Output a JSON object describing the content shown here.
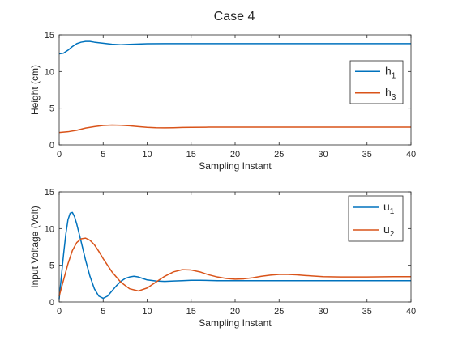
{
  "figure": {
    "title": "Case 4"
  },
  "chart_data": [
    {
      "type": "line",
      "title": "Case 4",
      "xlabel": "Sampling Instant",
      "ylabel": "Height (cm)",
      "xlim": [
        0,
        40
      ],
      "ylim": [
        0,
        15
      ],
      "xticks": [
        0,
        5,
        10,
        15,
        20,
        25,
        30,
        35,
        40
      ],
      "yticks": [
        0,
        5,
        10,
        15
      ],
      "grid": false,
      "legend_position": "right",
      "series": [
        {
          "name": "h",
          "subscript": "1",
          "color": "#0072bd",
          "x": [
            0,
            0.5,
            1,
            1.5,
            2,
            2.5,
            3,
            3.5,
            4,
            5,
            6,
            7,
            8,
            9,
            10,
            12,
            15,
            20,
            25,
            30,
            35,
            40
          ],
          "y": [
            12.4,
            12.5,
            12.9,
            13.4,
            13.8,
            14.0,
            14.1,
            14.1,
            14.0,
            13.85,
            13.72,
            13.65,
            13.7,
            13.75,
            13.78,
            13.8,
            13.8,
            13.8,
            13.8,
            13.8,
            13.8,
            13.8
          ]
        },
        {
          "name": "h",
          "subscript": "3",
          "color": "#d95319",
          "x": [
            0,
            1,
            2,
            3,
            4,
            5,
            6,
            7,
            8,
            9,
            10,
            11,
            12,
            13,
            14,
            15,
            17,
            20,
            25,
            30,
            35,
            40
          ],
          "y": [
            1.7,
            1.8,
            2.0,
            2.3,
            2.5,
            2.65,
            2.7,
            2.68,
            2.6,
            2.5,
            2.4,
            2.35,
            2.33,
            2.35,
            2.38,
            2.4,
            2.42,
            2.42,
            2.43,
            2.43,
            2.43,
            2.43
          ]
        }
      ]
    },
    {
      "type": "line",
      "xlabel": "Sampling Instant",
      "ylabel": "Input Voltage (Volt)",
      "xlim": [
        0,
        40
      ],
      "ylim": [
        0,
        15
      ],
      "xticks": [
        0,
        5,
        10,
        15,
        20,
        25,
        30,
        35,
        40
      ],
      "yticks": [
        0,
        5,
        10,
        15
      ],
      "grid": false,
      "legend_position": "top-right",
      "series": [
        {
          "name": "u",
          "subscript": "1",
          "color": "#0072bd",
          "x": [
            0,
            0.25,
            0.5,
            0.75,
            1,
            1.25,
            1.5,
            1.75,
            2,
            2.5,
            3,
            3.5,
            4,
            4.5,
            5,
            5.5,
            6,
            6.5,
            7,
            7.5,
            8,
            8.5,
            9,
            9.5,
            10,
            11,
            12,
            13,
            14,
            15,
            16,
            18,
            20,
            25,
            30,
            35,
            40
          ],
          "y": [
            0.4,
            3.5,
            6.5,
            9.2,
            11.2,
            12.1,
            12.2,
            11.6,
            10.6,
            8.2,
            5.7,
            3.5,
            1.8,
            0.8,
            0.5,
            0.8,
            1.5,
            2.2,
            2.8,
            3.2,
            3.4,
            3.5,
            3.4,
            3.2,
            3.0,
            2.85,
            2.8,
            2.85,
            2.9,
            2.95,
            2.95,
            2.9,
            2.9,
            2.9,
            2.9,
            2.9,
            2.9
          ]
        },
        {
          "name": "u",
          "subscript": "2",
          "color": "#d95319",
          "x": [
            0,
            0.5,
            1,
            1.5,
            2,
            2.5,
            3,
            3.5,
            4,
            4.5,
            5,
            5.5,
            6,
            7,
            8,
            9,
            10,
            11,
            12,
            13,
            14,
            15,
            16,
            17,
            18,
            19,
            20,
            21,
            22,
            23,
            24,
            25,
            26,
            27,
            28,
            30,
            32,
            35,
            38,
            40
          ],
          "y": [
            0.8,
            3.0,
            5.2,
            7.0,
            8.1,
            8.6,
            8.7,
            8.4,
            7.8,
            6.9,
            5.9,
            5.0,
            4.1,
            2.7,
            1.8,
            1.5,
            1.9,
            2.7,
            3.5,
            4.1,
            4.4,
            4.35,
            4.1,
            3.7,
            3.4,
            3.2,
            3.1,
            3.15,
            3.3,
            3.5,
            3.65,
            3.75,
            3.75,
            3.7,
            3.6,
            3.45,
            3.4,
            3.4,
            3.45,
            3.45
          ]
        }
      ]
    }
  ]
}
